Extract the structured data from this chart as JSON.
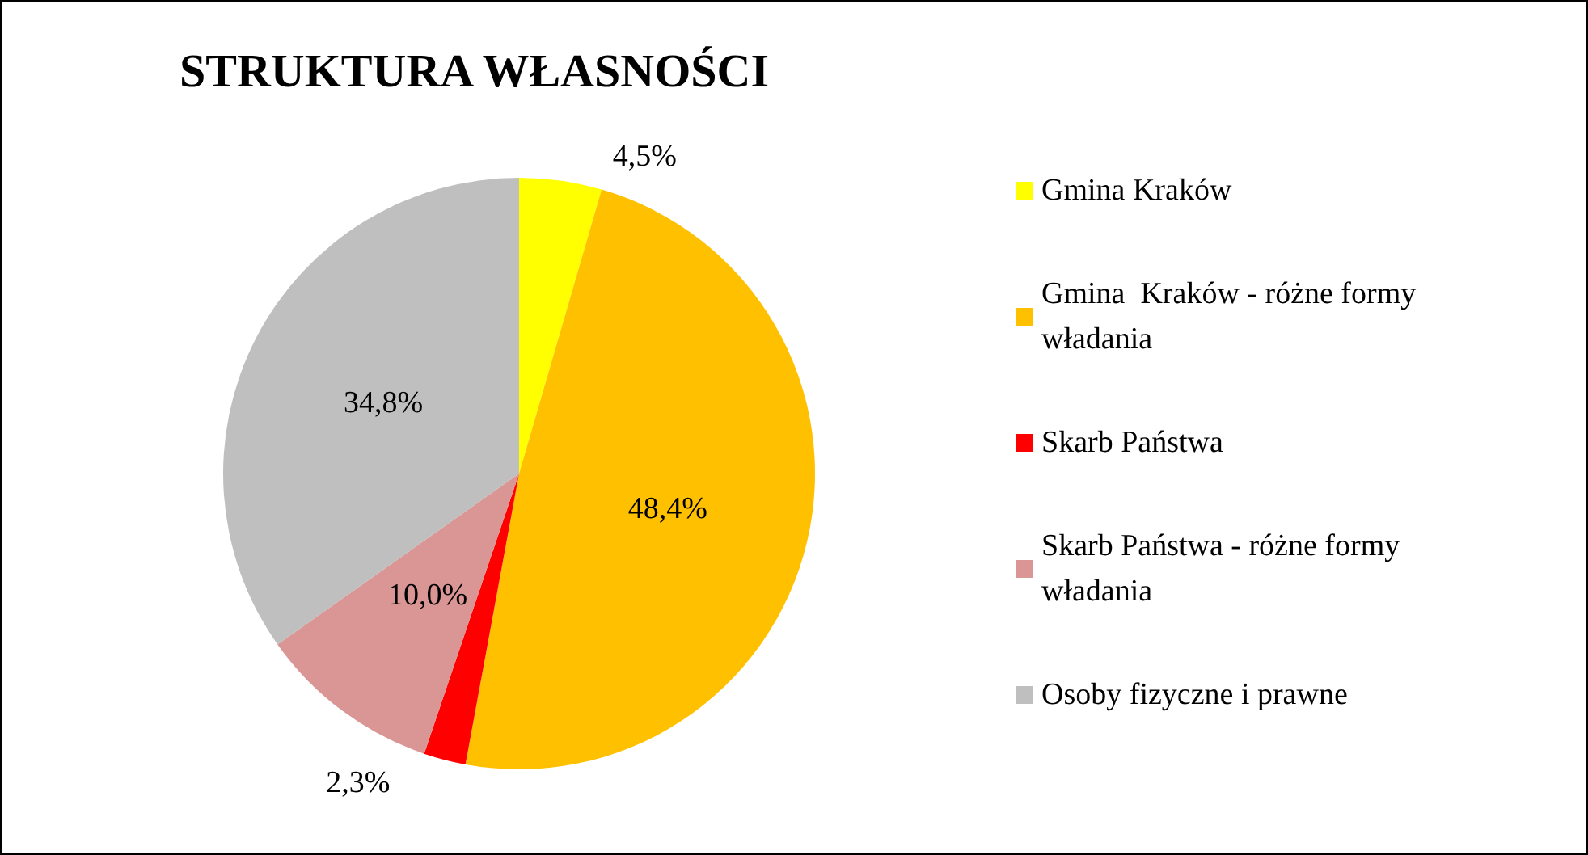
{
  "chart_data": {
    "type": "pie",
    "title": "STRUKTURA WŁASNOŚCI",
    "categories": [
      "Gmina Kraków",
      "Gmina  Kraków - różne formy władania",
      "Skarb Państwa",
      "Skarb Państwa - różne formy władania",
      "Osoby fizyczne i prawne"
    ],
    "values": [
      4.5,
      48.4,
      2.3,
      10.0,
      34.8
    ],
    "value_labels": [
      "4,5%",
      "48,4%",
      "2,3%",
      "10,0%",
      "34,8%"
    ],
    "colors": [
      "#ffff00",
      "#ffc000",
      "#ff0000",
      "#d99694",
      "#bfbfbf"
    ],
    "legend": "right"
  }
}
